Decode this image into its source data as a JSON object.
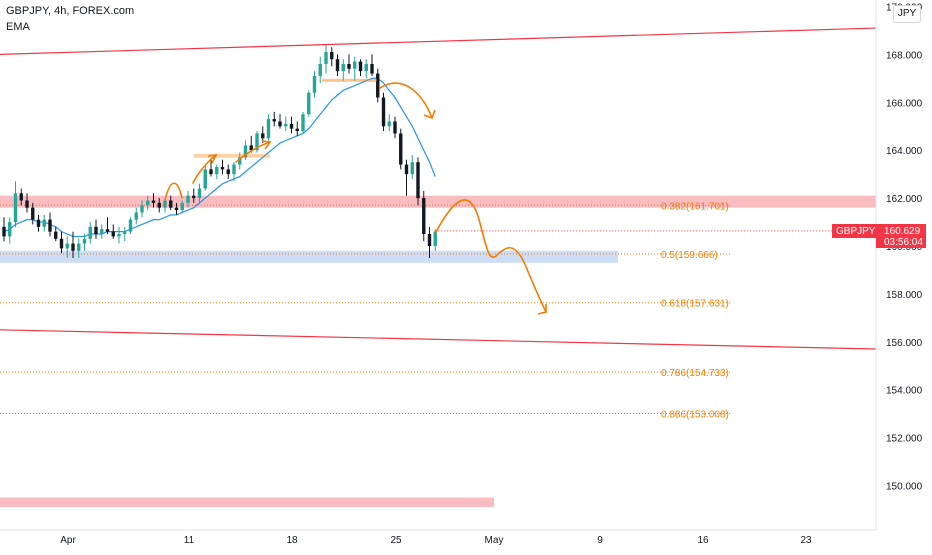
{
  "header": {
    "title": "GBPJPY, 4h, FOREX.com",
    "indicator": "EMA"
  },
  "currency_button": "JPY",
  "colors": {
    "up": "#26a69a",
    "down": "#131722",
    "ema": "#2196f3",
    "trend": "#f23645",
    "fib": "#f57c00",
    "resistance_zone": "#f7b0b6",
    "support_zone": "#bcd2f2",
    "arrow": "#f57c00"
  },
  "chart_data": {
    "type": "candlestick",
    "symbol": "GBPJPY",
    "timeframe": "4h",
    "y_axis": {
      "ticks": [
        150,
        152,
        154,
        156,
        158,
        160,
        162,
        164,
        166,
        168,
        170
      ],
      "tick_labels": [
        "150.000",
        "152.000",
        "154.000",
        "156.000",
        "158.000",
        "160.000",
        "162.000",
        "164.000",
        "166.000",
        "168.000",
        "170.000"
      ]
    },
    "x_axis": {
      "ticks": [
        "Apr 1",
        "Apr 11",
        "Apr 18",
        "Apr 25",
        "May 1",
        "May 9",
        "May 16",
        "May 23"
      ],
      "tick_labels": [
        "Apr",
        "11",
        "18",
        "25",
        "May",
        "9",
        "16",
        "23"
      ]
    },
    "last_price": {
      "label": "GBPJPY",
      "value": "160.629",
      "countdown": "03:56:04"
    },
    "fib_levels": [
      {
        "label": "0.382(161.701)",
        "value": 161.701
      },
      {
        "label": "0.5(159.666)",
        "value": 159.666
      },
      {
        "label": "0.618(157.631)",
        "value": 157.631
      },
      {
        "label": "0.786(154.733)",
        "value": 154.733
      },
      {
        "label": "0.886(153.008)",
        "value": 153.008
      }
    ],
    "trendlines": [
      {
        "from": {
          "date": "Mar 21",
          "price": 168.0
        },
        "to": {
          "date": "May 31",
          "price": 169.1
        }
      },
      {
        "from": {
          "date": "Mar 21",
          "price": 156.5
        },
        "to": {
          "date": "May 31",
          "price": 155.7
        }
      }
    ],
    "zones": [
      {
        "name": "resistance",
        "low": 161.6,
        "high": 162.1,
        "from": "Mar 21",
        "to": "May 31"
      },
      {
        "name": "support",
        "low": 159.3,
        "high": 159.8,
        "from": "Mar 21",
        "to": "May 5"
      },
      {
        "name": "lower-zone",
        "low": 149.1,
        "high": 149.5,
        "from": "Mar 21",
        "to": "Apr 29"
      }
    ],
    "candles": [
      [
        160.8,
        161.2,
        160.2,
        160.4
      ],
      [
        160.4,
        161.2,
        160.1,
        161.0
      ],
      [
        161.0,
        162.7,
        160.8,
        162.2
      ],
      [
        162.2,
        162.4,
        161.7,
        161.9
      ],
      [
        161.9,
        162.2,
        161.4,
        161.6
      ],
      [
        161.6,
        161.8,
        160.9,
        161.1
      ],
      [
        161.1,
        161.3,
        160.6,
        160.8
      ],
      [
        160.8,
        161.3,
        160.6,
        161.1
      ],
      [
        161.1,
        161.4,
        160.4,
        160.6
      ],
      [
        160.6,
        160.8,
        160.2,
        160.3
      ],
      [
        160.3,
        160.6,
        159.7,
        159.9
      ],
      [
        159.9,
        160.4,
        159.5,
        160.1
      ],
      [
        160.1,
        160.6,
        159.5,
        159.8
      ],
      [
        159.8,
        160.3,
        159.5,
        160.1
      ],
      [
        160.1,
        160.5,
        159.8,
        160.3
      ],
      [
        160.3,
        161.0,
        160.1,
        160.8
      ],
      [
        160.8,
        161.1,
        160.3,
        160.5
      ],
      [
        160.5,
        160.9,
        160.3,
        160.7
      ],
      [
        160.7,
        161.2,
        160.5,
        160.6
      ],
      [
        160.6,
        160.9,
        160.3,
        160.4
      ],
      [
        160.4,
        160.8,
        160.1,
        160.5
      ],
      [
        160.5,
        160.8,
        160.2,
        160.6
      ],
      [
        160.6,
        161.2,
        160.5,
        161.1
      ],
      [
        161.1,
        161.6,
        160.9,
        161.4
      ],
      [
        161.4,
        161.9,
        161.2,
        161.7
      ],
      [
        161.7,
        162.1,
        161.5,
        161.9
      ],
      [
        161.9,
        162.2,
        161.6,
        161.8
      ],
      [
        161.8,
        162.0,
        161.4,
        161.6
      ],
      [
        161.6,
        162.0,
        161.4,
        161.9
      ],
      [
        161.9,
        162.1,
        161.5,
        161.6
      ],
      [
        161.6,
        161.8,
        161.3,
        161.5
      ],
      [
        161.5,
        161.9,
        161.4,
        161.8
      ],
      [
        161.8,
        162.3,
        161.6,
        162.1
      ],
      [
        162.1,
        162.4,
        161.8,
        162.0
      ],
      [
        162.0,
        162.6,
        161.8,
        162.4
      ],
      [
        162.4,
        163.4,
        162.3,
        163.2
      ],
      [
        163.2,
        163.6,
        162.9,
        163.0
      ],
      [
        163.0,
        163.4,
        162.8,
        163.3
      ],
      [
        163.3,
        163.6,
        163.0,
        163.2
      ],
      [
        163.2,
        163.4,
        162.8,
        163.0
      ],
      [
        163.0,
        163.5,
        162.7,
        163.4
      ],
      [
        163.4,
        163.9,
        163.2,
        163.7
      ],
      [
        163.7,
        164.4,
        163.6,
        164.2
      ],
      [
        164.2,
        164.6,
        163.9,
        164.0
      ],
      [
        164.0,
        164.8,
        163.9,
        164.7
      ],
      [
        164.7,
        165.0,
        164.3,
        164.5
      ],
      [
        164.5,
        165.5,
        164.4,
        165.3
      ],
      [
        165.3,
        165.6,
        165.0,
        165.2
      ],
      [
        165.2,
        165.5,
        164.9,
        165.0
      ],
      [
        165.0,
        165.4,
        164.8,
        165.1
      ],
      [
        165.1,
        165.4,
        164.7,
        164.9
      ],
      [
        164.9,
        165.2,
        164.6,
        164.8
      ],
      [
        164.8,
        165.6,
        164.7,
        165.5
      ],
      [
        165.5,
        166.5,
        165.4,
        166.4
      ],
      [
        166.4,
        167.3,
        166.2,
        167.1
      ],
      [
        167.1,
        167.9,
        166.8,
        167.6
      ],
      [
        167.6,
        168.4,
        167.2,
        168.1
      ],
      [
        168.1,
        168.3,
        167.5,
        167.8
      ],
      [
        167.8,
        168.0,
        167.1,
        167.3
      ],
      [
        167.3,
        167.8,
        166.9,
        167.6
      ],
      [
        167.6,
        168.0,
        167.2,
        167.4
      ],
      [
        167.4,
        167.9,
        166.9,
        167.7
      ],
      [
        167.7,
        167.8,
        167.1,
        167.3
      ],
      [
        167.3,
        167.8,
        167.0,
        167.6
      ],
      [
        167.6,
        168.0,
        167.1,
        167.2
      ],
      [
        167.2,
        167.4,
        166.0,
        166.2
      ],
      [
        166.2,
        166.4,
        164.8,
        165.0
      ],
      [
        165.0,
        165.5,
        164.8,
        165.2
      ],
      [
        165.2,
        165.4,
        164.5,
        164.7
      ],
      [
        164.7,
        164.9,
        163.2,
        163.4
      ],
      [
        163.4,
        163.6,
        162.1,
        163.0
      ],
      [
        163.0,
        163.8,
        162.8,
        163.5
      ],
      [
        163.5,
        163.7,
        161.7,
        162.0
      ],
      [
        162.0,
        162.3,
        160.2,
        160.5
      ],
      [
        160.5,
        160.8,
        159.5,
        160.0
      ],
      [
        160.0,
        160.7,
        159.8,
        160.6
      ]
    ],
    "ema": [
      160.6,
      160.7,
      160.9,
      161.0,
      161.1,
      161.1,
      161.0,
      161.0,
      160.9,
      160.8,
      160.6,
      160.5,
      160.4,
      160.4,
      160.4,
      160.5,
      160.5,
      160.5,
      160.6,
      160.6,
      160.6,
      160.6,
      160.7,
      160.8,
      160.9,
      161.0,
      161.1,
      161.1,
      161.2,
      161.3,
      161.3,
      161.4,
      161.5,
      161.6,
      161.8,
      162.0,
      162.2,
      162.4,
      162.6,
      162.7,
      162.8,
      162.9,
      163.1,
      163.3,
      163.5,
      163.7,
      163.9,
      164.1,
      164.3,
      164.4,
      164.5,
      164.6,
      164.7,
      164.9,
      165.2,
      165.5,
      165.8,
      166.1,
      166.3,
      166.5,
      166.6,
      166.7,
      166.8,
      166.9,
      167.0,
      167.0,
      166.8,
      166.5,
      166.2,
      165.8,
      165.4,
      165.0,
      164.5,
      164.0,
      163.5,
      162.9
    ]
  }
}
